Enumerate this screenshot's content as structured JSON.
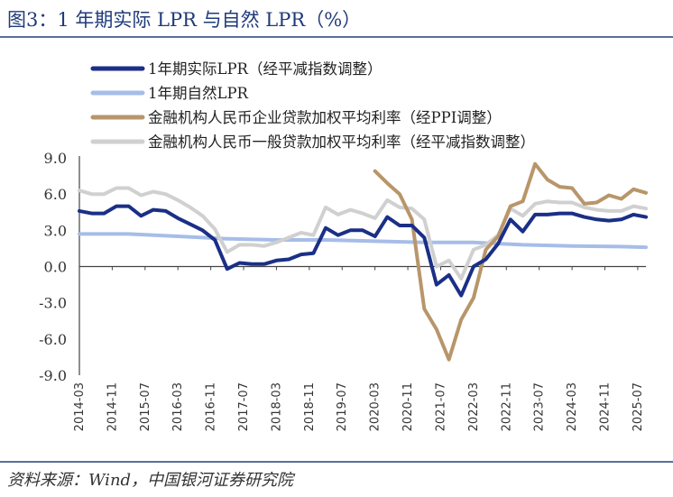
{
  "figure": {
    "title": "图3：1 年期实际 LPR 与自然 LPR（%）",
    "source": "资料来源：Wind，中国银河证券研究院"
  },
  "chart_data": {
    "type": "line",
    "title": "图3：1 年期实际 LPR 与自然 LPR（%）",
    "xlabel": "",
    "ylabel": "",
    "ylim": [
      -9.0,
      9.0
    ],
    "yticks": [
      "9.0",
      "6.0",
      "3.0",
      "0.0",
      "-3.0",
      "-6.0",
      "-9.0"
    ],
    "ytick_values": [
      9,
      6,
      3,
      0,
      -3,
      -6,
      -9
    ],
    "xticks": [
      "2014-03",
      "2014-11",
      "2015-07",
      "2016-03",
      "2016-11",
      "2017-07",
      "2018-03",
      "2018-11",
      "2019-07",
      "2020-03",
      "2020-11",
      "2021-07",
      "2022-03",
      "2022-11",
      "2023-07",
      "2024-03",
      "2024-11",
      "2025-07"
    ],
    "x_start": "2014-03",
    "x_end": "2025-09",
    "legend_position": "top-left",
    "series": [
      {
        "name": "1年期实际LPR（经平减指数调整）",
        "color": "#1a2f86",
        "width": 4,
        "x": [
          "2014-03",
          "2014-06",
          "2014-09",
          "2014-12",
          "2015-03",
          "2015-06",
          "2015-09",
          "2015-12",
          "2016-03",
          "2016-06",
          "2016-09",
          "2016-12",
          "2017-03",
          "2017-06",
          "2017-09",
          "2017-12",
          "2018-03",
          "2018-06",
          "2018-09",
          "2018-12",
          "2019-03",
          "2019-06",
          "2019-09",
          "2019-12",
          "2020-03",
          "2020-06",
          "2020-09",
          "2020-12",
          "2021-03",
          "2021-06",
          "2021-09",
          "2021-12",
          "2022-03",
          "2022-06",
          "2022-09",
          "2022-12",
          "2023-03",
          "2023-06",
          "2023-09",
          "2023-12",
          "2024-03",
          "2024-06",
          "2024-09",
          "2024-12",
          "2025-03",
          "2025-06",
          "2025-09"
        ],
        "values": [
          4.6,
          4.4,
          4.4,
          5.0,
          5.0,
          4.2,
          4.7,
          4.6,
          4.0,
          3.5,
          3.0,
          2.2,
          -0.2,
          0.3,
          0.2,
          0.2,
          0.5,
          0.6,
          1.0,
          1.1,
          3.2,
          2.6,
          3.0,
          3.0,
          2.5,
          4.1,
          3.4,
          3.4,
          2.4,
          -1.5,
          -0.7,
          -2.4,
          0.0,
          0.6,
          1.9,
          3.9,
          2.9,
          4.3,
          4.3,
          4.4,
          4.4,
          4.1,
          3.9,
          3.8,
          3.9,
          4.3,
          4.1
        ]
      },
      {
        "name": "1年期自然LPR",
        "color": "#a6bde8",
        "width": 4,
        "x": [
          "2014-03",
          "2015-03",
          "2016-03",
          "2017-03",
          "2018-03",
          "2019-03",
          "2020-03",
          "2021-03",
          "2022-03",
          "2023-03",
          "2024-03",
          "2025-03",
          "2025-09"
        ],
        "values": [
          2.7,
          2.7,
          2.5,
          2.3,
          2.2,
          2.2,
          2.1,
          2.0,
          2.0,
          1.8,
          1.7,
          1.65,
          1.6
        ]
      },
      {
        "name": "金融机构人民币企业贷款加权平均利率（经PPI调整）",
        "color": "#b8966a",
        "width": 4,
        "x": [
          "2020-03",
          "2020-06",
          "2020-09",
          "2020-12",
          "2021-03",
          "2021-06",
          "2021-09",
          "2021-12",
          "2022-03",
          "2022-06",
          "2022-09",
          "2022-12",
          "2023-03",
          "2023-06",
          "2023-09",
          "2023-12",
          "2024-03",
          "2024-06",
          "2024-09",
          "2024-12",
          "2025-03",
          "2025-06",
          "2025-09"
        ],
        "values": [
          7.9,
          6.9,
          6.0,
          3.9,
          -3.5,
          -5.2,
          -7.7,
          -4.4,
          -2.6,
          1.4,
          2.5,
          5.0,
          5.4,
          8.5,
          7.2,
          6.6,
          6.5,
          5.2,
          5.3,
          5.9,
          5.6,
          6.4,
          6.1
        ]
      },
      {
        "name": "金融机构人民币一般贷款加权平均利率（经平减指数调整）",
        "color": "#d0d0d0",
        "width": 4,
        "x": [
          "2014-03",
          "2014-06",
          "2014-09",
          "2014-12",
          "2015-03",
          "2015-06",
          "2015-09",
          "2015-12",
          "2016-03",
          "2016-06",
          "2016-09",
          "2016-12",
          "2017-03",
          "2017-06",
          "2017-09",
          "2017-12",
          "2018-03",
          "2018-06",
          "2018-09",
          "2018-12",
          "2019-03",
          "2019-06",
          "2019-09",
          "2019-12",
          "2020-03",
          "2020-06",
          "2020-09",
          "2020-12",
          "2021-03",
          "2021-06",
          "2021-09",
          "2021-12",
          "2022-03",
          "2022-06",
          "2022-09",
          "2022-12",
          "2023-03",
          "2023-06",
          "2023-09",
          "2023-12",
          "2024-03",
          "2024-06",
          "2024-09",
          "2024-12",
          "2025-03",
          "2025-06",
          "2025-09"
        ],
        "values": [
          6.3,
          6.0,
          6.0,
          6.5,
          6.5,
          5.9,
          6.2,
          6.0,
          5.5,
          4.9,
          4.2,
          3.1,
          1.2,
          1.8,
          1.8,
          1.7,
          2.0,
          2.4,
          2.8,
          2.6,
          4.9,
          4.3,
          4.7,
          4.4,
          4.0,
          5.5,
          4.9,
          4.8,
          3.9,
          0.0,
          0.5,
          -1.0,
          1.4,
          1.8,
          2.6,
          4.8,
          4.2,
          5.2,
          5.4,
          5.3,
          5.3,
          4.9,
          4.7,
          4.6,
          4.6,
          5.0,
          4.8
        ]
      }
    ]
  }
}
